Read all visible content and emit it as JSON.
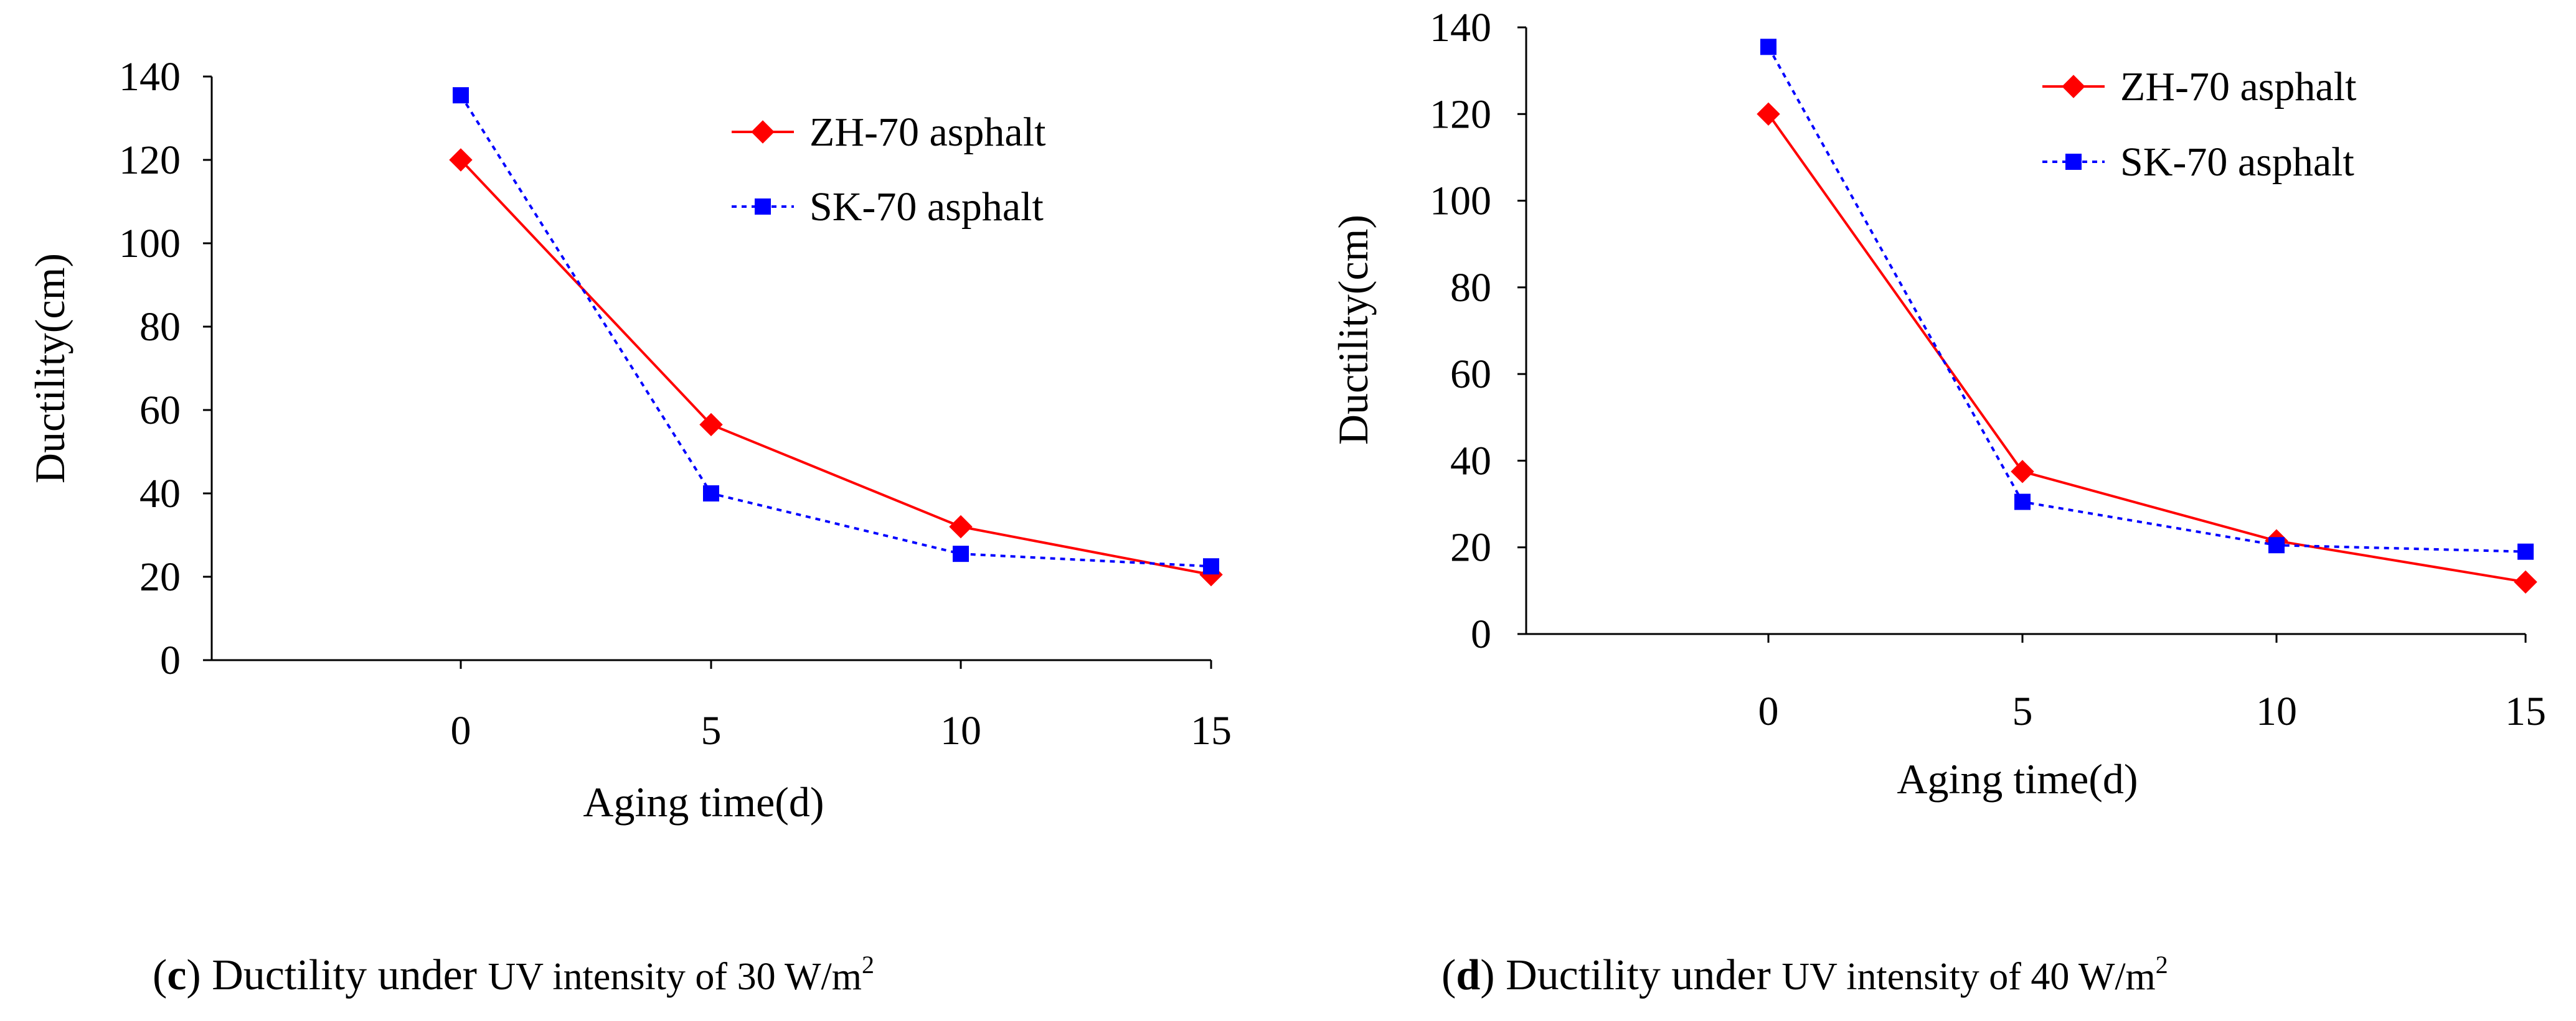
{
  "chart_data": [
    {
      "type": "line",
      "panel": "c",
      "x": [
        0,
        5,
        10,
        15
      ],
      "xlabel": "Aging time(d)",
      "ylabel": "Ductility(cm)",
      "ylim": [
        0,
        140
      ],
      "yticks": [
        0,
        20,
        40,
        60,
        80,
        100,
        120,
        140
      ],
      "xticks": [
        0,
        5,
        10,
        15
      ],
      "grid": false,
      "legend_position": "top-right",
      "series": [
        {
          "name": "ZH-70 asphalt",
          "values": [
            120,
            56.5,
            32,
            20.5
          ],
          "color": "#ff0000",
          "marker": "diamond",
          "line_style": "solid"
        },
        {
          "name": "SK-70 asphalt",
          "values": [
            135.5,
            40,
            25.5,
            22.5
          ],
          "color": "#0000ff",
          "marker": "square",
          "line_style": "dotted"
        }
      ],
      "caption": {
        "letter": "c",
        "open": "(",
        "close": ")",
        "lead": " Ductility under ",
        "small": "UV intensity of 30 W/m",
        "sup": "2"
      }
    },
    {
      "type": "line",
      "panel": "d",
      "x": [
        0,
        5,
        10,
        15
      ],
      "xlabel": "Aging time(d)",
      "ylabel": "Ductility(cm)",
      "ylim": [
        0,
        140
      ],
      "yticks": [
        0,
        20,
        40,
        60,
        80,
        100,
        120,
        140
      ],
      "xticks": [
        0,
        5,
        10,
        15
      ],
      "grid": false,
      "legend_position": "top-right",
      "series": [
        {
          "name": "ZH-70 asphalt",
          "values": [
            120,
            37.5,
            21.5,
            12
          ],
          "color": "#ff0000",
          "marker": "diamond",
          "line_style": "solid"
        },
        {
          "name": "SK-70 asphalt",
          "values": [
            135.5,
            30.5,
            20.5,
            19
          ],
          "color": "#0000ff",
          "marker": "square",
          "line_style": "dotted"
        }
      ],
      "caption": {
        "letter": "d",
        "open": "(",
        "close": ")",
        "lead": " Ductility under ",
        "small": "UV intensity of 40 W/m",
        "sup": "2"
      }
    }
  ]
}
